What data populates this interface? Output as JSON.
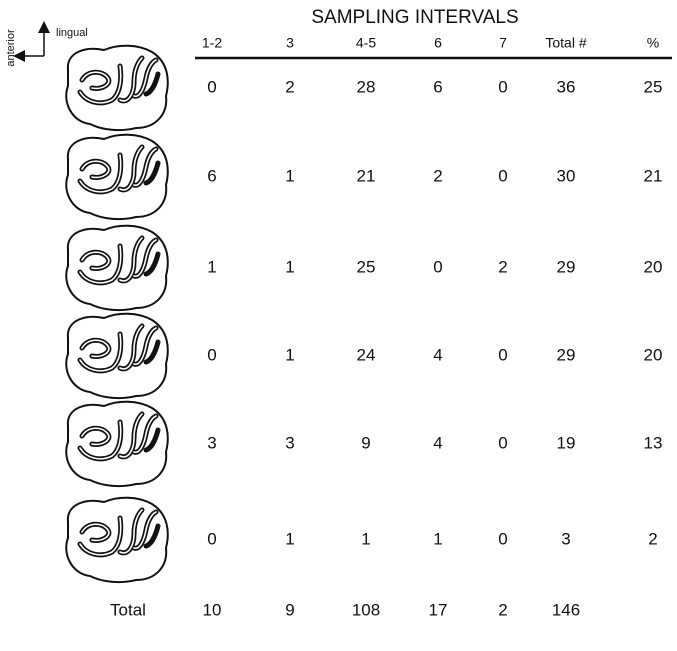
{
  "title": "SAMPLING INTERVALS",
  "orientation": {
    "up": "lingual",
    "left": "anterior"
  },
  "table": {
    "headers": [
      "1-2",
      "3",
      "4-5",
      "6",
      "7",
      "Total #",
      "%"
    ],
    "rows": [
      [
        0,
        2,
        28,
        6,
        0,
        36,
        25
      ],
      [
        6,
        1,
        21,
        2,
        0,
        30,
        21
      ],
      [
        1,
        1,
        25,
        0,
        2,
        29,
        20
      ],
      [
        0,
        1,
        24,
        4,
        0,
        29,
        20
      ],
      [
        3,
        3,
        9,
        4,
        0,
        19,
        13
      ],
      [
        0,
        1,
        1,
        1,
        0,
        3,
        2
      ]
    ],
    "total_label": "Total",
    "totals": [
      10,
      9,
      108,
      17,
      2,
      146
    ]
  }
}
